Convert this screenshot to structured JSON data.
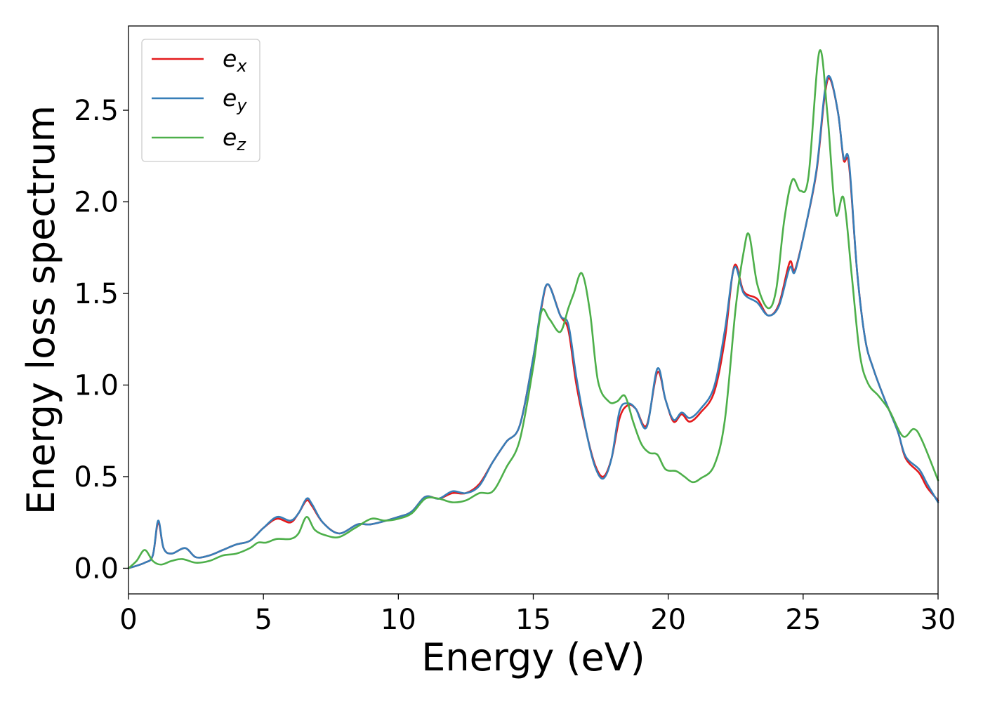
{
  "chart_data": {
    "type": "line",
    "title": "",
    "xlabel": "Energy (eV)",
    "ylabel": "Energy loss spectrum",
    "xlim": [
      0,
      30
    ],
    "ylim": [
      -0.14,
      2.96
    ],
    "xticks": [
      0,
      5,
      10,
      15,
      20,
      25,
      30
    ],
    "xtick_labels": [
      "0",
      "5",
      "10",
      "15",
      "20",
      "25",
      "30"
    ],
    "yticks": [
      0.0,
      0.5,
      1.0,
      1.5,
      2.0,
      2.5
    ],
    "ytick_labels": [
      "0.0",
      "0.5",
      "1.0",
      "1.5",
      "2.0",
      "2.5"
    ],
    "grid": false,
    "legend_position": "top-left",
    "series": [
      {
        "name": "e_x",
        "legend_base": "e",
        "legend_sub": "x",
        "color": "#e41a1c",
        "points": [
          [
            0,
            0
          ],
          [
            0.6,
            0.03
          ],
          [
            0.9,
            0.07
          ],
          [
            1.1,
            0.25
          ],
          [
            1.3,
            0.11
          ],
          [
            1.6,
            0.08
          ],
          [
            2.1,
            0.11
          ],
          [
            2.5,
            0.06
          ],
          [
            3.0,
            0.07
          ],
          [
            3.5,
            0.1
          ],
          [
            4.0,
            0.13
          ],
          [
            4.5,
            0.15
          ],
          [
            5.0,
            0.22
          ],
          [
            5.5,
            0.27
          ],
          [
            6.0,
            0.25
          ],
          [
            6.3,
            0.3
          ],
          [
            6.6,
            0.37
          ],
          [
            6.8,
            0.34
          ],
          [
            7.2,
            0.25
          ],
          [
            7.8,
            0.19
          ],
          [
            8.5,
            0.24
          ],
          [
            9.0,
            0.24
          ],
          [
            10.0,
            0.28
          ],
          [
            10.5,
            0.31
          ],
          [
            11.0,
            0.39
          ],
          [
            11.5,
            0.38
          ],
          [
            12.0,
            0.41
          ],
          [
            12.5,
            0.41
          ],
          [
            13.0,
            0.46
          ],
          [
            13.5,
            0.58
          ],
          [
            14.0,
            0.69
          ],
          [
            14.5,
            0.78
          ],
          [
            15.0,
            1.15
          ],
          [
            15.3,
            1.42
          ],
          [
            15.55,
            1.55
          ],
          [
            16.0,
            1.38
          ],
          [
            16.3,
            1.3
          ],
          [
            16.6,
            1.0
          ],
          [
            17.0,
            0.72
          ],
          [
            17.3,
            0.56
          ],
          [
            17.6,
            0.5
          ],
          [
            17.9,
            0.6
          ],
          [
            18.2,
            0.82
          ],
          [
            18.5,
            0.89
          ],
          [
            18.8,
            0.87
          ],
          [
            19.2,
            0.78
          ],
          [
            19.6,
            1.07
          ],
          [
            19.9,
            0.92
          ],
          [
            20.2,
            0.8
          ],
          [
            20.5,
            0.84
          ],
          [
            20.8,
            0.8
          ],
          [
            21.2,
            0.85
          ],
          [
            21.7,
            0.96
          ],
          [
            22.1,
            1.25
          ],
          [
            22.45,
            1.65
          ],
          [
            22.8,
            1.51
          ],
          [
            23.3,
            1.47
          ],
          [
            23.7,
            1.38
          ],
          [
            24.1,
            1.44
          ],
          [
            24.5,
            1.67
          ],
          [
            24.7,
            1.63
          ],
          [
            25.1,
            1.87
          ],
          [
            25.5,
            2.17
          ],
          [
            25.8,
            2.58
          ],
          [
            26.0,
            2.67
          ],
          [
            26.3,
            2.48
          ],
          [
            26.5,
            2.23
          ],
          [
            26.7,
            2.2
          ],
          [
            27.0,
            1.62
          ],
          [
            27.3,
            1.25
          ],
          [
            27.6,
            1.09
          ],
          [
            28.0,
            0.93
          ],
          [
            28.5,
            0.75
          ],
          [
            28.8,
            0.6
          ],
          [
            29.3,
            0.52
          ],
          [
            29.6,
            0.44
          ],
          [
            30.0,
            0.37
          ]
        ]
      },
      {
        "name": "e_y",
        "legend_base": "e",
        "legend_sub": "y",
        "color": "#377eb8",
        "points": [
          [
            0,
            0
          ],
          [
            0.6,
            0.03
          ],
          [
            0.9,
            0.07
          ],
          [
            1.1,
            0.26
          ],
          [
            1.3,
            0.11
          ],
          [
            1.6,
            0.08
          ],
          [
            2.1,
            0.11
          ],
          [
            2.5,
            0.06
          ],
          [
            3.0,
            0.07
          ],
          [
            3.5,
            0.1
          ],
          [
            4.0,
            0.13
          ],
          [
            4.5,
            0.15
          ],
          [
            5.0,
            0.22
          ],
          [
            5.5,
            0.28
          ],
          [
            6.0,
            0.26
          ],
          [
            6.3,
            0.3
          ],
          [
            6.6,
            0.38
          ],
          [
            6.8,
            0.35
          ],
          [
            7.2,
            0.25
          ],
          [
            7.8,
            0.19
          ],
          [
            8.5,
            0.24
          ],
          [
            9.0,
            0.24
          ],
          [
            10.0,
            0.28
          ],
          [
            10.5,
            0.31
          ],
          [
            11.0,
            0.39
          ],
          [
            11.5,
            0.38
          ],
          [
            12.0,
            0.42
          ],
          [
            12.5,
            0.41
          ],
          [
            13.0,
            0.45
          ],
          [
            13.5,
            0.58
          ],
          [
            14.0,
            0.69
          ],
          [
            14.5,
            0.78
          ],
          [
            15.0,
            1.15
          ],
          [
            15.3,
            1.43
          ],
          [
            15.55,
            1.55
          ],
          [
            16.0,
            1.38
          ],
          [
            16.3,
            1.33
          ],
          [
            16.6,
            1.04
          ],
          [
            17.0,
            0.72
          ],
          [
            17.3,
            0.55
          ],
          [
            17.6,
            0.49
          ],
          [
            17.9,
            0.6
          ],
          [
            18.2,
            0.86
          ],
          [
            18.5,
            0.9
          ],
          [
            18.8,
            0.87
          ],
          [
            19.2,
            0.77
          ],
          [
            19.6,
            1.09
          ],
          [
            19.9,
            0.92
          ],
          [
            20.2,
            0.81
          ],
          [
            20.5,
            0.85
          ],
          [
            20.8,
            0.82
          ],
          [
            21.2,
            0.87
          ],
          [
            21.7,
            0.99
          ],
          [
            22.1,
            1.3
          ],
          [
            22.45,
            1.64
          ],
          [
            22.8,
            1.5
          ],
          [
            23.3,
            1.45
          ],
          [
            23.7,
            1.38
          ],
          [
            24.1,
            1.43
          ],
          [
            24.5,
            1.64
          ],
          [
            24.7,
            1.62
          ],
          [
            25.1,
            1.87
          ],
          [
            25.5,
            2.18
          ],
          [
            25.8,
            2.6
          ],
          [
            26.0,
            2.68
          ],
          [
            26.3,
            2.48
          ],
          [
            26.5,
            2.24
          ],
          [
            26.7,
            2.22
          ],
          [
            27.0,
            1.62
          ],
          [
            27.3,
            1.25
          ],
          [
            27.6,
            1.09
          ],
          [
            28.0,
            0.93
          ],
          [
            28.5,
            0.75
          ],
          [
            28.8,
            0.61
          ],
          [
            29.3,
            0.54
          ],
          [
            29.6,
            0.46
          ],
          [
            30.0,
            0.36
          ]
        ]
      },
      {
        "name": "e_z",
        "legend_base": "e",
        "legend_sub": "z",
        "color": "#4daf4a",
        "points": [
          [
            0,
            0
          ],
          [
            0.3,
            0.04
          ],
          [
            0.6,
            0.1
          ],
          [
            0.9,
            0.04
          ],
          [
            1.2,
            0.02
          ],
          [
            1.6,
            0.04
          ],
          [
            2.0,
            0.05
          ],
          [
            2.5,
            0.03
          ],
          [
            3.0,
            0.04
          ],
          [
            3.5,
            0.07
          ],
          [
            4.0,
            0.08
          ],
          [
            4.5,
            0.11
          ],
          [
            4.8,
            0.14
          ],
          [
            5.1,
            0.14
          ],
          [
            5.5,
            0.16
          ],
          [
            6.0,
            0.16
          ],
          [
            6.3,
            0.19
          ],
          [
            6.6,
            0.28
          ],
          [
            6.9,
            0.21
          ],
          [
            7.3,
            0.18
          ],
          [
            7.8,
            0.17
          ],
          [
            8.4,
            0.22
          ],
          [
            9.0,
            0.27
          ],
          [
            9.5,
            0.26
          ],
          [
            10.0,
            0.27
          ],
          [
            10.5,
            0.3
          ],
          [
            11.0,
            0.38
          ],
          [
            11.5,
            0.38
          ],
          [
            12.0,
            0.36
          ],
          [
            12.5,
            0.37
          ],
          [
            13.0,
            0.41
          ],
          [
            13.5,
            0.42
          ],
          [
            14.0,
            0.55
          ],
          [
            14.5,
            0.7
          ],
          [
            15.0,
            1.1
          ],
          [
            15.3,
            1.4
          ],
          [
            15.6,
            1.36
          ],
          [
            16.0,
            1.29
          ],
          [
            16.3,
            1.42
          ],
          [
            16.5,
            1.5
          ],
          [
            16.8,
            1.61
          ],
          [
            17.1,
            1.4
          ],
          [
            17.4,
            1.02
          ],
          [
            17.8,
            0.91
          ],
          [
            18.1,
            0.91
          ],
          [
            18.4,
            0.94
          ],
          [
            18.7,
            0.8
          ],
          [
            19.0,
            0.68
          ],
          [
            19.3,
            0.63
          ],
          [
            19.6,
            0.62
          ],
          [
            19.9,
            0.54
          ],
          [
            20.3,
            0.53
          ],
          [
            20.6,
            0.5
          ],
          [
            20.9,
            0.47
          ],
          [
            21.2,
            0.49
          ],
          [
            21.7,
            0.56
          ],
          [
            22.1,
            0.81
          ],
          [
            22.5,
            1.42
          ],
          [
            22.8,
            1.73
          ],
          [
            23.0,
            1.82
          ],
          [
            23.3,
            1.55
          ],
          [
            23.7,
            1.42
          ],
          [
            24.0,
            1.52
          ],
          [
            24.3,
            1.9
          ],
          [
            24.6,
            2.12
          ],
          [
            24.9,
            2.06
          ],
          [
            25.2,
            2.14
          ],
          [
            25.6,
            2.82
          ],
          [
            25.9,
            2.48
          ],
          [
            26.2,
            1.94
          ],
          [
            26.5,
            2.02
          ],
          [
            26.8,
            1.6
          ],
          [
            27.1,
            1.17
          ],
          [
            27.4,
            1.01
          ],
          [
            27.8,
            0.94
          ],
          [
            28.2,
            0.86
          ],
          [
            28.7,
            0.72
          ],
          [
            29.1,
            0.76
          ],
          [
            29.4,
            0.7
          ],
          [
            30.0,
            0.48
          ]
        ]
      }
    ]
  }
}
